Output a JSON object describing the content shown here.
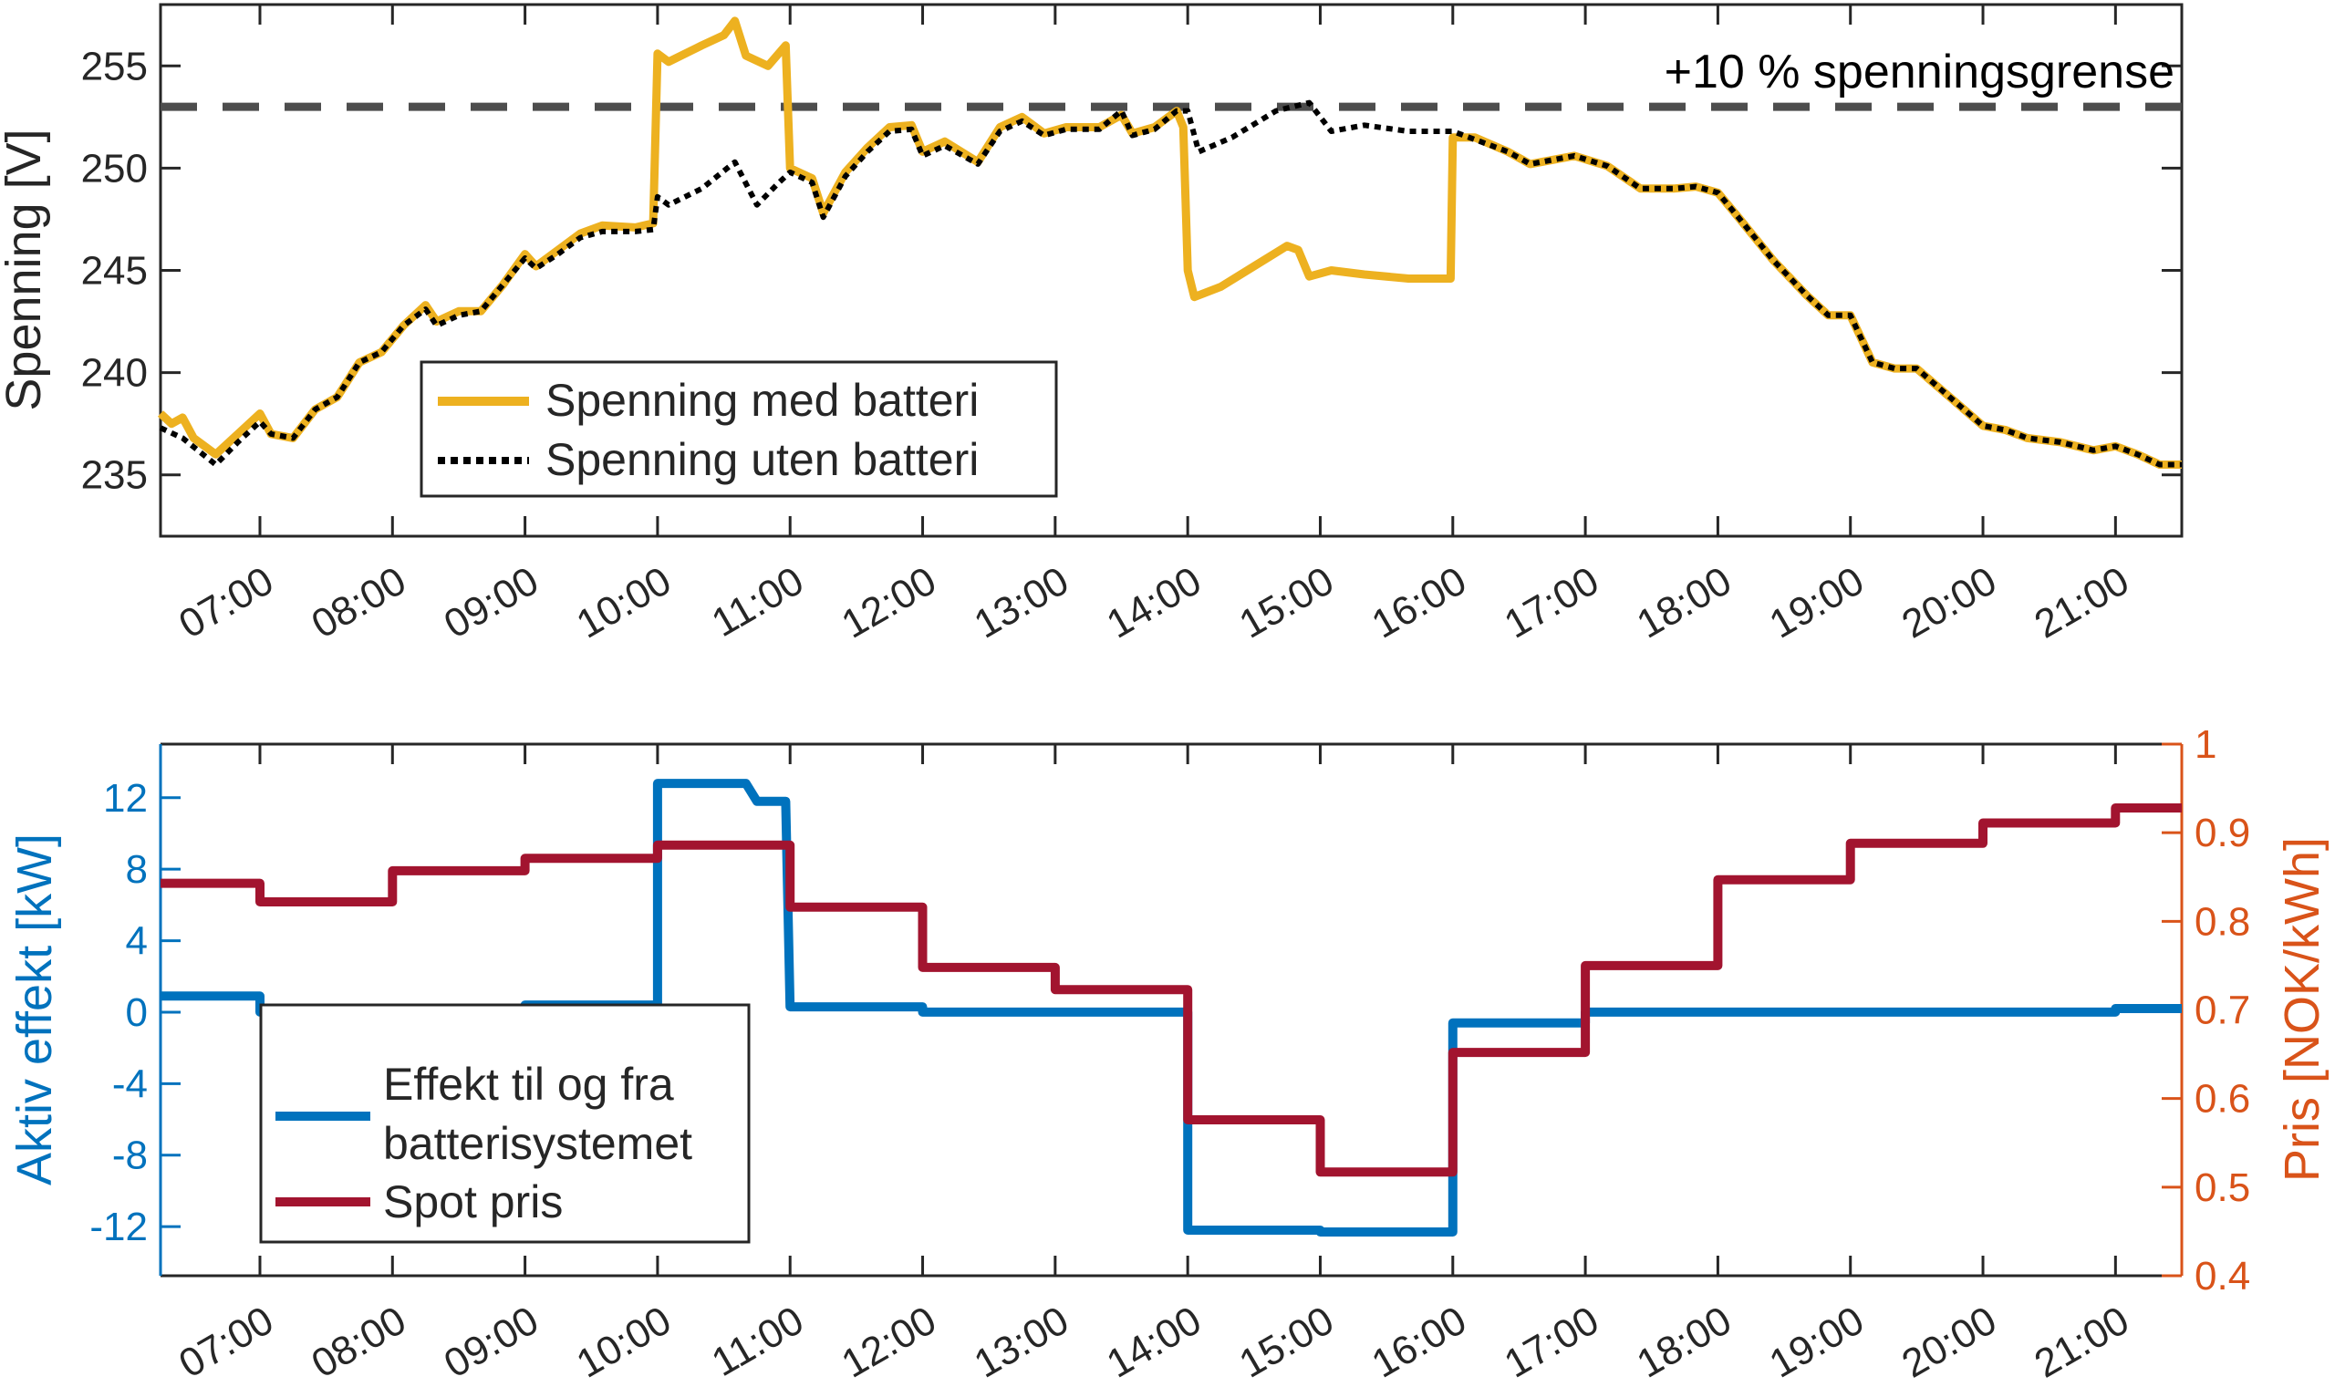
{
  "chart_data": [
    {
      "type": "line",
      "ylabel": "Spenning [V]",
      "xlabel": "",
      "xlim": [
        "06:15",
        "21:30"
      ],
      "ylim": [
        232,
        258
      ],
      "xticks": [
        "07:00",
        "08:00",
        "09:00",
        "10:00",
        "11:00",
        "12:00",
        "13:00",
        "14:00",
        "15:00",
        "16:00",
        "17:00",
        "18:00",
        "19:00",
        "20:00",
        "21:00"
      ],
      "yticks": [
        235,
        240,
        245,
        250,
        255
      ],
      "grid": false,
      "legend_placement": "lower-left",
      "reference_line": {
        "value": 253,
        "label": "+10 % spenningsgrense",
        "color": "#4D4D4D",
        "style": "dashed"
      },
      "series": [
        {
          "name": "Spenning med batteri",
          "color": "#EDB120",
          "style": "solid",
          "points": [
            [
              "06:15",
              238
            ],
            [
              "06:20",
              237.5
            ],
            [
              "06:25",
              237.8
            ],
            [
              "06:30",
              236.8
            ],
            [
              "06:40",
              236
            ],
            [
              "06:50",
              237
            ],
            [
              "07:00",
              238
            ],
            [
              "07:05",
              237
            ],
            [
              "07:15",
              236.8
            ],
            [
              "07:25",
              238.2
            ],
            [
              "07:35",
              238.8
            ],
            [
              "07:45",
              240.5
            ],
            [
              "07:55",
              241
            ],
            [
              "08:05",
              242.3
            ],
            [
              "08:15",
              243.3
            ],
            [
              "08:20",
              242.5
            ],
            [
              "08:30",
              243
            ],
            [
              "08:40",
              243
            ],
            [
              "08:50",
              244.3
            ],
            [
              "09:00",
              245.8
            ],
            [
              "09:05",
              245.2
            ],
            [
              "09:15",
              246
            ],
            [
              "09:25",
              246.8
            ],
            [
              "09:35",
              247.2
            ],
            [
              "09:50",
              247.1
            ],
            [
              "09:58",
              247.3
            ],
            [
              "10:00",
              255.6
            ],
            [
              "10:05",
              255.2
            ],
            [
              "10:20",
              256
            ],
            [
              "10:30",
              256.5
            ],
            [
              "10:35",
              257.2
            ],
            [
              "10:40",
              255.5
            ],
            [
              "10:50",
              255
            ],
            [
              "10:58",
              256
            ],
            [
              "11:00",
              250
            ],
            [
              "11:10",
              249.5
            ],
            [
              "11:15",
              247.8
            ],
            [
              "11:25",
              249.8
            ],
            [
              "11:35",
              251
            ],
            [
              "11:45",
              252
            ],
            [
              "11:55",
              252.1
            ],
            [
              "12:00",
              250.8
            ],
            [
              "12:10",
              251.3
            ],
            [
              "12:25",
              250.3
            ],
            [
              "12:35",
              252
            ],
            [
              "12:45",
              252.5
            ],
            [
              "12:55",
              251.7
            ],
            [
              "13:05",
              252
            ],
            [
              "13:20",
              252
            ],
            [
              "13:30",
              252.6
            ],
            [
              "13:35",
              251.7
            ],
            [
              "13:45",
              252
            ],
            [
              "13:55",
              252.8
            ],
            [
              "13:58",
              252
            ],
            [
              "14:00",
              245
            ],
            [
              "14:03",
              243.7
            ],
            [
              "14:15",
              244.2
            ],
            [
              "14:30",
              245.2
            ],
            [
              "14:45",
              246.2
            ],
            [
              "14:50",
              246
            ],
            [
              "14:55",
              244.7
            ],
            [
              "15:05",
              245
            ],
            [
              "15:20",
              244.8
            ],
            [
              "15:40",
              244.6
            ],
            [
              "15:59",
              244.6
            ],
            [
              "16:00",
              251.5
            ],
            [
              "16:10",
              251.5
            ],
            [
              "16:25",
              250.8
            ],
            [
              "16:35",
              250.2
            ],
            [
              "16:45",
              250.4
            ],
            [
              "16:55",
              250.6
            ],
            [
              "17:10",
              250.1
            ],
            [
              "17:25",
              249
            ],
            [
              "17:40",
              249
            ],
            [
              "17:50",
              249.1
            ],
            [
              "18:00",
              248.8
            ],
            [
              "18:10",
              247.5
            ],
            [
              "18:25",
              245.5
            ],
            [
              "18:40",
              243.8
            ],
            [
              "18:50",
              242.8
            ],
            [
              "19:00",
              242.8
            ],
            [
              "19:10",
              240.5
            ],
            [
              "19:20",
              240.2
            ],
            [
              "19:30",
              240.2
            ],
            [
              "19:45",
              238.8
            ],
            [
              "20:00",
              237.4
            ],
            [
              "20:10",
              237.2
            ],
            [
              "20:20",
              236.8
            ],
            [
              "20:35",
              236.6
            ],
            [
              "20:50",
              236.2
            ],
            [
              "21:00",
              236.4
            ],
            [
              "21:10",
              236
            ],
            [
              "21:20",
              235.5
            ],
            [
              "21:30",
              235.5
            ]
          ]
        },
        {
          "name": "Spenning uten batteri",
          "color": "#000000",
          "style": "dotted",
          "points": [
            [
              "06:15",
              237.3
            ],
            [
              "06:25",
              236.8
            ],
            [
              "06:40",
              235.5
            ],
            [
              "06:50",
              236.6
            ],
            [
              "07:00",
              237.6
            ],
            [
              "07:05",
              237
            ],
            [
              "07:15",
              236.8
            ],
            [
              "07:25",
              238.2
            ],
            [
              "07:35",
              238.8
            ],
            [
              "07:45",
              240.5
            ],
            [
              "07:55",
              241
            ],
            [
              "08:05",
              242.3
            ],
            [
              "08:15",
              243.1
            ],
            [
              "08:20",
              242.3
            ],
            [
              "08:30",
              242.8
            ],
            [
              "08:40",
              243
            ],
            [
              "08:50",
              244.3
            ],
            [
              "09:00",
              245.6
            ],
            [
              "09:05",
              245.1
            ],
            [
              "09:15",
              245.8
            ],
            [
              "09:25",
              246.6
            ],
            [
              "09:35",
              246.9
            ],
            [
              "09:50",
              246.9
            ],
            [
              "09:58",
              247
            ],
            [
              "10:00",
              248.6
            ],
            [
              "10:05",
              248.2
            ],
            [
              "10:20",
              249
            ],
            [
              "10:35",
              250.3
            ],
            [
              "10:45",
              248.2
            ],
            [
              "10:55",
              249.3
            ],
            [
              "11:00",
              249.8
            ],
            [
              "11:10",
              249.3
            ],
            [
              "11:15",
              247.6
            ],
            [
              "11:25",
              249.6
            ],
            [
              "11:35",
              250.8
            ],
            [
              "11:45",
              251.8
            ],
            [
              "11:55",
              251.9
            ],
            [
              "12:00",
              250.6
            ],
            [
              "12:10",
              251.1
            ],
            [
              "12:25",
              250.2
            ],
            [
              "12:35",
              251.8
            ],
            [
              "12:45",
              252.3
            ],
            [
              "12:55",
              251.6
            ],
            [
              "13:05",
              251.9
            ],
            [
              "13:20",
              251.9
            ],
            [
              "13:30",
              252.8
            ],
            [
              "13:35",
              251.6
            ],
            [
              "13:45",
              251.9
            ],
            [
              "13:55",
              252.8
            ],
            [
              "14:00",
              252.8
            ],
            [
              "14:05",
              250.8
            ],
            [
              "14:20",
              251.5
            ],
            [
              "14:40",
              252.8
            ],
            [
              "14:55",
              253.2
            ],
            [
              "15:05",
              251.8
            ],
            [
              "15:20",
              252.1
            ],
            [
              "15:40",
              251.8
            ],
            [
              "16:00",
              251.8
            ],
            [
              "16:10",
              251.4
            ],
            [
              "16:25",
              250.8
            ],
            [
              "16:35",
              250.2
            ],
            [
              "16:45",
              250.4
            ],
            [
              "16:55",
              250.6
            ],
            [
              "17:10",
              250.1
            ],
            [
              "17:25",
              249
            ],
            [
              "17:40",
              249
            ],
            [
              "17:50",
              249.1
            ],
            [
              "18:00",
              248.8
            ],
            [
              "18:10",
              247.5
            ],
            [
              "18:25",
              245.5
            ],
            [
              "18:40",
              243.8
            ],
            [
              "18:50",
              242.8
            ],
            [
              "19:00",
              242.8
            ],
            [
              "19:10",
              240.5
            ],
            [
              "19:20",
              240.2
            ],
            [
              "19:30",
              240.2
            ],
            [
              "19:45",
              238.8
            ],
            [
              "20:00",
              237.4
            ],
            [
              "20:10",
              237.2
            ],
            [
              "20:20",
              236.8
            ],
            [
              "20:35",
              236.6
            ],
            [
              "20:50",
              236.2
            ],
            [
              "21:00",
              236.4
            ],
            [
              "21:10",
              236
            ],
            [
              "21:20",
              235.5
            ],
            [
              "21:30",
              235.5
            ]
          ]
        }
      ]
    },
    {
      "type": "line",
      "xlabel": "",
      "ylabel_left": "Aktiv effekt [kW]",
      "ylabel_right": "Pris [NOK/kWh]",
      "xlim": [
        "06:15",
        "21:30"
      ],
      "ylim_left": [
        -14.75,
        15
      ],
      "ylim_right": [
        0.4,
        1
      ],
      "xticks": [
        "07:00",
        "08:00",
        "09:00",
        "10:00",
        "11:00",
        "12:00",
        "13:00",
        "14:00",
        "15:00",
        "16:00",
        "17:00",
        "18:00",
        "19:00",
        "20:00",
        "21:00"
      ],
      "yticks_left": [
        "-12",
        "-8",
        "-4",
        "0",
        "4",
        "8",
        "12"
      ],
      "yticks_right": [
        "0.4",
        "0.5",
        "0.6",
        "0.7",
        "0.8",
        "0.9",
        "1"
      ],
      "left_axis_color": "#0072BD",
      "right_axis_color": "#D95319",
      "grid": false,
      "legend_placement": "lower-left",
      "series": [
        {
          "name": "Effekt til og fra batterisystemet",
          "axis": "left",
          "color": "#0072BD",
          "points": [
            [
              "06:15",
              0.9
            ],
            [
              "07:00",
              0.9
            ],
            [
              "07:00",
              0
            ],
            [
              "09:00",
              0
            ],
            [
              "09:00",
              0.4
            ],
            [
              "10:00",
              0.4
            ],
            [
              "10:00",
              12.8
            ],
            [
              "10:40",
              12.8
            ],
            [
              "10:45",
              11.8
            ],
            [
              "10:58",
              11.8
            ],
            [
              "11:00",
              0.3
            ],
            [
              "12:00",
              0.3
            ],
            [
              "12:00",
              0
            ],
            [
              "14:00",
              0
            ],
            [
              "14:00",
              -12.2
            ],
            [
              "15:00",
              -12.2
            ],
            [
              "15:00",
              -12.3
            ],
            [
              "16:00",
              -12.3
            ],
            [
              "16:00",
              -0.6
            ],
            [
              "17:00",
              -0.6
            ],
            [
              "17:00",
              0
            ],
            [
              "21:00",
              0
            ],
            [
              "21:00",
              0.2
            ],
            [
              "21:30",
              0.2
            ]
          ]
        },
        {
          "name": "Spot pris",
          "axis": "right",
          "color": "#A2142F",
          "points": [
            [
              "06:15",
              0.843
            ],
            [
              "07:00",
              0.843
            ],
            [
              "07:00",
              0.822
            ],
            [
              "08:00",
              0.822
            ],
            [
              "08:00",
              0.857
            ],
            [
              "09:00",
              0.857
            ],
            [
              "09:00",
              0.871
            ],
            [
              "10:00",
              0.871
            ],
            [
              "10:00",
              0.886
            ],
            [
              "11:00",
              0.886
            ],
            [
              "11:00",
              0.816
            ],
            [
              "12:00",
              0.816
            ],
            [
              "12:00",
              0.748
            ],
            [
              "13:00",
              0.748
            ],
            [
              "13:00",
              0.723
            ],
            [
              "14:00",
              0.723
            ],
            [
              "14:00",
              0.576
            ],
            [
              "15:00",
              0.576
            ],
            [
              "15:00",
              0.517
            ],
            [
              "16:00",
              0.517
            ],
            [
              "16:00",
              0.652
            ],
            [
              "17:00",
              0.652
            ],
            [
              "17:00",
              0.75
            ],
            [
              "18:00",
              0.75
            ],
            [
              "18:00",
              0.847
            ],
            [
              "19:00",
              0.847
            ],
            [
              "19:00",
              0.888
            ],
            [
              "20:00",
              0.888
            ],
            [
              "20:00",
              0.911
            ],
            [
              "21:00",
              0.911
            ],
            [
              "21:00",
              0.928
            ],
            [
              "21:30",
              0.928
            ]
          ]
        }
      ]
    }
  ]
}
